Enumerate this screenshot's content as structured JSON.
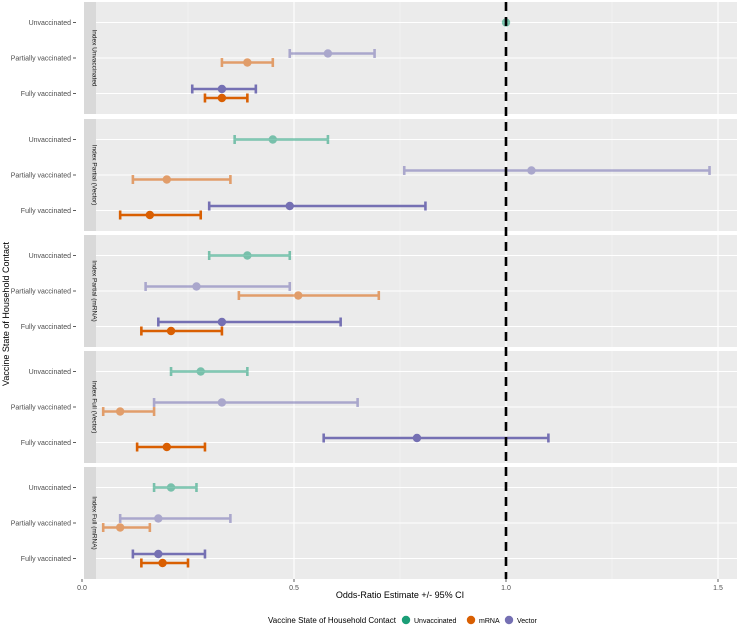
{
  "chart_data": {
    "type": "scatter",
    "subtype": "forest-plot-errorbar",
    "xlabel": "Odds-Ratio Estimate +/- 95% CI",
    "ylabel": "Vaccine State of Household Contact",
    "xlim": [
      0.0,
      1.55
    ],
    "xticks": [
      "0.0",
      "0.5",
      "1.0",
      "1.5"
    ],
    "xtick_values": [
      0.0,
      0.5,
      1.0,
      1.5
    ],
    "reference_line_x": 1.0,
    "grid": true,
    "categories": [
      "Unvaccinated",
      "Partially vaccinated",
      "Fully vaccinated"
    ],
    "legend": {
      "title": "Vaccine State of Household Contact",
      "position": "bottom",
      "entries": [
        {
          "name": "Unvaccinated",
          "color": "#1b9e77"
        },
        {
          "name": "mRNA",
          "color": "#d95f02"
        },
        {
          "name": "Vector",
          "color": "#7570b3"
        }
      ]
    },
    "panels": [
      {
        "strip": "Index Unvaccinated",
        "rows": [
          {
            "category": "Unvaccinated",
            "points": [
              {
                "series": "Unvaccinated",
                "est": 1.0,
                "lo": 1.0,
                "hi": 1.0,
                "faded": true
              }
            ]
          },
          {
            "category": "Partially vaccinated",
            "points": [
              {
                "series": "Vector",
                "est": 0.58,
                "lo": 0.49,
                "hi": 0.69,
                "faded": true
              },
              {
                "series": "mRNA",
                "est": 0.39,
                "lo": 0.33,
                "hi": 0.45,
                "faded": true
              }
            ]
          },
          {
            "category": "Fully vaccinated",
            "points": [
              {
                "series": "Vector",
                "est": 0.33,
                "lo": 0.26,
                "hi": 0.41,
                "faded": false
              },
              {
                "series": "mRNA",
                "est": 0.33,
                "lo": 0.29,
                "hi": 0.39,
                "faded": false
              }
            ]
          }
        ]
      },
      {
        "strip": "Index Partial (Vector)",
        "rows": [
          {
            "category": "Unvaccinated",
            "points": [
              {
                "series": "Unvaccinated",
                "est": 0.45,
                "lo": 0.36,
                "hi": 0.58,
                "faded": true
              }
            ]
          },
          {
            "category": "Partially vaccinated",
            "points": [
              {
                "series": "Vector",
                "est": 1.06,
                "lo": 0.76,
                "hi": 1.48,
                "faded": true
              },
              {
                "series": "mRNA",
                "est": 0.2,
                "lo": 0.12,
                "hi": 0.35,
                "faded": true
              }
            ]
          },
          {
            "category": "Fully vaccinated",
            "points": [
              {
                "series": "Vector",
                "est": 0.49,
                "lo": 0.3,
                "hi": 0.81,
                "faded": false
              },
              {
                "series": "mRNA",
                "est": 0.16,
                "lo": 0.09,
                "hi": 0.28,
                "faded": false
              }
            ]
          }
        ]
      },
      {
        "strip": "Index Partial (mRNA)",
        "rows": [
          {
            "category": "Unvaccinated",
            "points": [
              {
                "series": "Unvaccinated",
                "est": 0.39,
                "lo": 0.3,
                "hi": 0.49,
                "faded": true
              }
            ]
          },
          {
            "category": "Partially vaccinated",
            "points": [
              {
                "series": "Vector",
                "est": 0.27,
                "lo": 0.15,
                "hi": 0.49,
                "faded": true
              },
              {
                "series": "mRNA",
                "est": 0.51,
                "lo": 0.37,
                "hi": 0.7,
                "faded": true
              }
            ]
          },
          {
            "category": "Fully vaccinated",
            "points": [
              {
                "series": "Vector",
                "est": 0.33,
                "lo": 0.18,
                "hi": 0.61,
                "faded": false
              },
              {
                "series": "mRNA",
                "est": 0.21,
                "lo": 0.14,
                "hi": 0.33,
                "faded": false
              }
            ]
          }
        ]
      },
      {
        "strip": "Index Full (Vector)",
        "rows": [
          {
            "category": "Unvaccinated",
            "points": [
              {
                "series": "Unvaccinated",
                "est": 0.28,
                "lo": 0.21,
                "hi": 0.39,
                "faded": true
              }
            ]
          },
          {
            "category": "Partially vaccinated",
            "points": [
              {
                "series": "Vector",
                "est": 0.33,
                "lo": 0.17,
                "hi": 0.65,
                "faded": true
              },
              {
                "series": "mRNA",
                "est": 0.09,
                "lo": 0.05,
                "hi": 0.17,
                "faded": true
              }
            ]
          },
          {
            "category": "Fully vaccinated",
            "points": [
              {
                "series": "Vector",
                "est": 0.79,
                "lo": 0.57,
                "hi": 1.1,
                "faded": false
              },
              {
                "series": "mRNA",
                "est": 0.2,
                "lo": 0.13,
                "hi": 0.29,
                "faded": false
              }
            ]
          }
        ]
      },
      {
        "strip": "Index Full (mRNA)",
        "rows": [
          {
            "category": "Unvaccinated",
            "points": [
              {
                "series": "Unvaccinated",
                "est": 0.21,
                "lo": 0.17,
                "hi": 0.27,
                "faded": true
              }
            ]
          },
          {
            "category": "Partially vaccinated",
            "points": [
              {
                "series": "Vector",
                "est": 0.18,
                "lo": 0.09,
                "hi": 0.35,
                "faded": true
              },
              {
                "series": "mRNA",
                "est": 0.09,
                "lo": 0.05,
                "hi": 0.16,
                "faded": true
              }
            ]
          },
          {
            "category": "Fully vaccinated",
            "points": [
              {
                "series": "Vector",
                "est": 0.18,
                "lo": 0.12,
                "hi": 0.29,
                "faded": false
              },
              {
                "series": "mRNA",
                "est": 0.19,
                "lo": 0.14,
                "hi": 0.25,
                "faded": false
              }
            ]
          }
        ]
      }
    ]
  }
}
